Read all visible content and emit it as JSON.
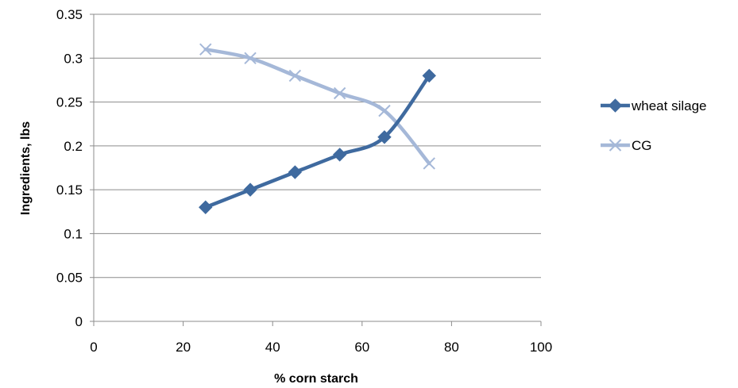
{
  "chart_data": {
    "type": "line",
    "title": "",
    "xlabel": "% corn starch",
    "ylabel": "Ingredients, lbs",
    "xlim": [
      0,
      100
    ],
    "ylim": [
      0,
      0.35
    ],
    "x_ticks": [
      "0",
      "20",
      "40",
      "60",
      "80",
      "100"
    ],
    "y_ticks": [
      "0",
      "0.05",
      "0.1",
      "0.15",
      "0.2",
      "0.25",
      "0.3",
      "0.35"
    ],
    "grid": "horizontal",
    "legend_position": "right",
    "x": [
      25,
      35,
      45,
      55,
      65,
      75
    ],
    "series": [
      {
        "name": "wheat silage",
        "values": [
          0.13,
          0.15,
          0.17,
          0.19,
          0.21,
          0.28
        ],
        "color": "#3f6a9f",
        "marker": "diamond"
      },
      {
        "name": "CG",
        "values": [
          0.31,
          0.3,
          0.28,
          0.26,
          0.24,
          0.18
        ],
        "color": "#a5b8d8",
        "marker": "x"
      }
    ]
  }
}
